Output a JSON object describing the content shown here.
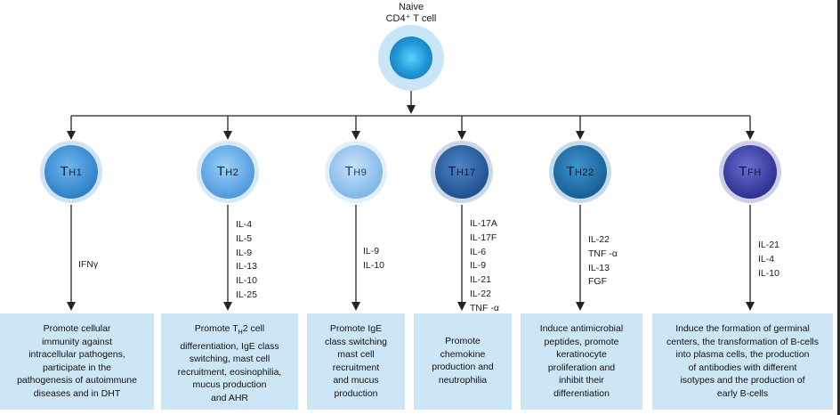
{
  "root": {
    "title_line1": "Naive",
    "title_line2": "CD4⁺ T cell"
  },
  "subsets": [
    {
      "label": "TH1",
      "display_main": "T",
      "display_sub": "H1",
      "color": "#3b8fd6",
      "cytokines": [
        "IFNγ"
      ],
      "description": [
        "Promote cellular",
        "immunity against",
        "intracellular pathogens,",
        "participate in the",
        "pathogenesis of autoimmune",
        "diseases and in DHT"
      ]
    },
    {
      "label": "TH2",
      "display_main": "T",
      "display_sub": "H2",
      "color": "#5aa6e6",
      "cytokines": [
        "IL-4",
        "IL-5",
        "IL-9",
        "IL-13",
        "IL-10",
        "IL-25"
      ],
      "description": [
        "Promote T",
        "differentiation, IgE class",
        "switching, mast cell",
        "recruitment, eosinophilia,",
        "mucus production",
        "and AHR"
      ]
    },
    {
      "label": "TH9",
      "display_main": "T",
      "display_sub": "H9",
      "color": "#8ec3ef",
      "cytokines": [
        "IL-9",
        "IL-10"
      ],
      "description": [
        "Promote IgE",
        "class switching",
        "mast cell",
        "recruitment",
        "and mucus",
        "production"
      ]
    },
    {
      "label": "TH17",
      "display_main": "T",
      "display_sub": "H17",
      "color": "#2a5fa0",
      "cytokines": [
        "IL-17A",
        "IL-17F",
        "IL-6",
        "IL-9",
        "IL-21",
        "IL-22",
        "TNF -α"
      ],
      "description": [
        "Promote",
        "chemokine",
        "production and",
        "neutrophilia"
      ]
    },
    {
      "label": "TH22",
      "display_main": "T",
      "display_sub": "H22",
      "color": "#1a6fa8",
      "cytokines": [
        "IL-22",
        "TNF -α",
        "IL-13",
        "FGF"
      ],
      "description": [
        "Induce antimicrobial",
        "peptides, promote",
        "keratinocyte",
        "proliferation and",
        "inhibit their",
        "differentiation"
      ]
    },
    {
      "label": "TFH",
      "display_main": "T",
      "display_sub": "FH",
      "color": "#3a3fa0",
      "cytokines": [
        "IL-21",
        "IL-4",
        "IL-10"
      ],
      "description": [
        "Induce the formation of germinal",
        "centers, the  transformation of B-cells",
        "into plasma cells, the production",
        "of antibodies with different",
        "isotypes and the production of",
        "early B-cells"
      ]
    }
  ],
  "th2_description_inline": {
    "sub": "H",
    "rest": "2 cell"
  },
  "colors": {
    "box_fill": "#cce6f6",
    "arrow": "#222222",
    "root_center": "#29a8e6",
    "root_halo": "#c8e6f7"
  }
}
